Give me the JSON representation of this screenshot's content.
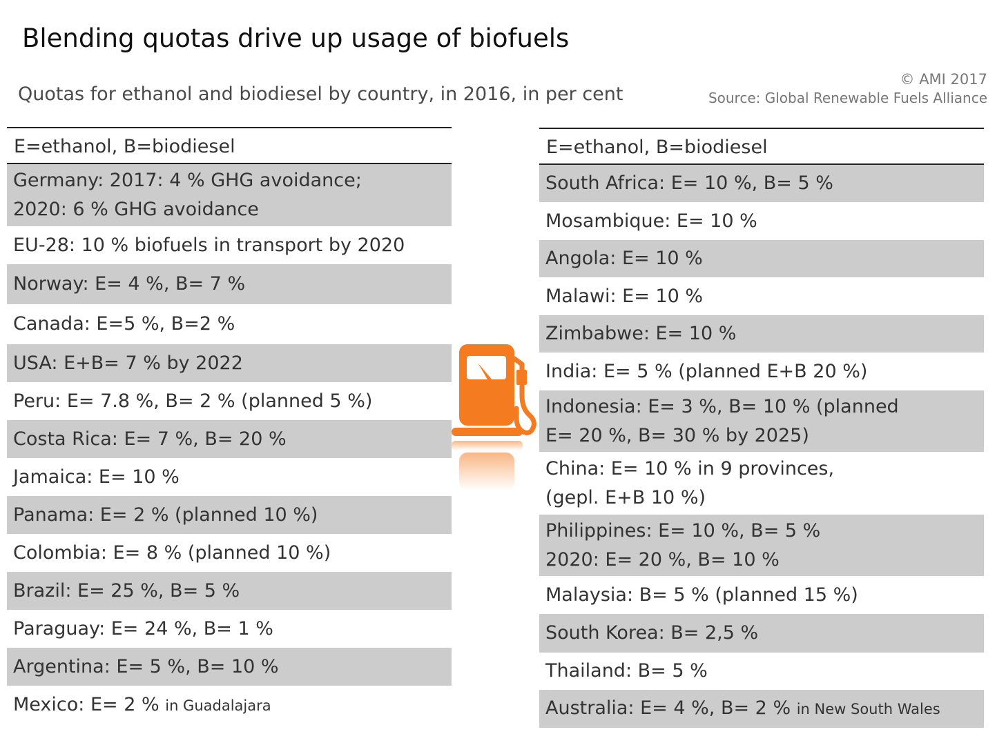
{
  "title": "Blending quotas drive up usage of biofuels",
  "subtitle": "Quotas for ethanol and biodiesel by country, in 2016, in per cent",
  "credit": {
    "copyright": "© AMI 2017",
    "source": "Source: Global Renewable Fuels Alliance"
  },
  "legend_label": "E=ethanol, B=biodiesel",
  "icon": "fuel-pump-icon",
  "colors": {
    "accent": "#f47b20",
    "shade": "#cccccc",
    "rule": "#222222"
  },
  "left_rows": [
    {
      "lines": [
        "Germany: 2017: 4 % GHG avoidance;",
        "2020: 6 % GHG avoidance"
      ],
      "note": ""
    },
    {
      "lines": [
        "EU-28: 10 % biofuels in transport by 2020"
      ],
      "note": ""
    },
    {
      "lines": [
        "Norway: E= 4 %, B= 7 %"
      ],
      "note": ""
    },
    {
      "lines": [
        "Canada: E=5 %, B=2 %"
      ],
      "note": ""
    },
    {
      "lines": [
        "USA: E+B= 7 % by 2022"
      ],
      "note": ""
    },
    {
      "lines": [
        "Peru: E= 7.8 %, B= 2 % (planned 5 %)"
      ],
      "note": ""
    },
    {
      "lines": [
        "Costa Rica: E= 7 %, B= 20 %"
      ],
      "note": ""
    },
    {
      "lines": [
        "Jamaica: E= 10 %"
      ],
      "note": ""
    },
    {
      "lines": [
        "Panama: E= 2 % (planned 10 %)"
      ],
      "note": ""
    },
    {
      "lines": [
        "Colombia: E= 8 % (planned 10 %)"
      ],
      "note": ""
    },
    {
      "lines": [
        "Brazil: E= 25 %, B= 5 %"
      ],
      "note": ""
    },
    {
      "lines": [
        "Paraguay: E= 24 %, B= 1 %"
      ],
      "note": ""
    },
    {
      "lines": [
        "Argentina: E= 5 %, B= 10 %"
      ],
      "note": ""
    },
    {
      "lines": [
        "Mexico: E= 2 %"
      ],
      "note": "in Guadalajara"
    }
  ],
  "right_rows": [
    {
      "lines": [
        "South Africa: E= 10 %, B= 5 %"
      ],
      "note": ""
    },
    {
      "lines": [
        "Mosambique: E= 10 %"
      ],
      "note": ""
    },
    {
      "lines": [
        "Angola: E= 10 %"
      ],
      "note": ""
    },
    {
      "lines": [
        "Malawi: E= 10 %"
      ],
      "note": ""
    },
    {
      "lines": [
        "Zimbabwe: E= 10 %"
      ],
      "note": ""
    },
    {
      "lines": [
        "India: E= 5 % (planned E+B 20 %)"
      ],
      "note": ""
    },
    {
      "lines": [
        "Indonesia: E= 3 %, B= 10 % (planned",
        "E= 20 %, B= 30 % by 2025)"
      ],
      "note": ""
    },
    {
      "lines": [
        "China: E= 10 % in 9 provinces,",
        "(gepl. E+B 10 %)"
      ],
      "note": ""
    },
    {
      "lines": [
        "Philippines: E= 10 %, B= 5 %",
        "2020: E= 20 %, B= 10 %"
      ],
      "note": ""
    },
    {
      "lines": [
        "Malaysia: B= 5 % (planned 15 %)"
      ],
      "note": ""
    },
    {
      "lines": [
        "South Korea: B= 2,5 %"
      ],
      "note": ""
    },
    {
      "lines": [
        "Thailand: B= 5 %"
      ],
      "note": ""
    },
    {
      "lines": [
        "Australia: E= 4 %, B= 2 %"
      ],
      "note": "in New South Wales"
    }
  ]
}
